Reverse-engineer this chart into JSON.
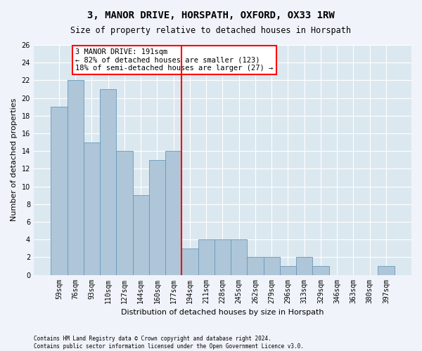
{
  "title": "3, MANOR DRIVE, HORSPATH, OXFORD, OX33 1RW",
  "subtitle": "Size of property relative to detached houses in Horspath",
  "xlabel": "Distribution of detached houses by size in Horspath",
  "ylabel": "Number of detached properties",
  "categories": [
    "59sqm",
    "76sqm",
    "93sqm",
    "110sqm",
    "127sqm",
    "144sqm",
    "160sqm",
    "177sqm",
    "194sqm",
    "211sqm",
    "228sqm",
    "245sqm",
    "262sqm",
    "279sqm",
    "296sqm",
    "313sqm",
    "329sqm",
    "346sqm",
    "363sqm",
    "380sqm",
    "397sqm"
  ],
  "values": [
    19,
    22,
    15,
    21,
    14,
    9,
    13,
    14,
    3,
    4,
    4,
    4,
    2,
    2,
    1,
    2,
    1,
    0,
    0,
    0,
    1
  ],
  "bar_color": "#aec6d8",
  "bar_edgecolor": "#6699bb",
  "highlight_line_index": 8,
  "highlight_line_color": "red",
  "annotation_text": "3 MANOR DRIVE: 191sqm\n← 82% of detached houses are smaller (123)\n18% of semi-detached houses are larger (27) →",
  "annotation_box_facecolor": "white",
  "annotation_box_edgecolor": "red",
  "ylim": [
    0,
    26
  ],
  "yticks": [
    0,
    2,
    4,
    6,
    8,
    10,
    12,
    14,
    16,
    18,
    20,
    22,
    24,
    26
  ],
  "figure_facecolor": "#f0f4fa",
  "axes_facecolor": "#dce8f0",
  "grid_color": "#ffffff",
  "title_fontsize": 10,
  "subtitle_fontsize": 8.5,
  "xlabel_fontsize": 8,
  "ylabel_fontsize": 8,
  "tick_fontsize": 7,
  "annotation_fontsize": 7.5,
  "footer1": "Contains HM Land Registry data © Crown copyright and database right 2024.",
  "footer2": "Contains public sector information licensed under the Open Government Licence v3.0."
}
